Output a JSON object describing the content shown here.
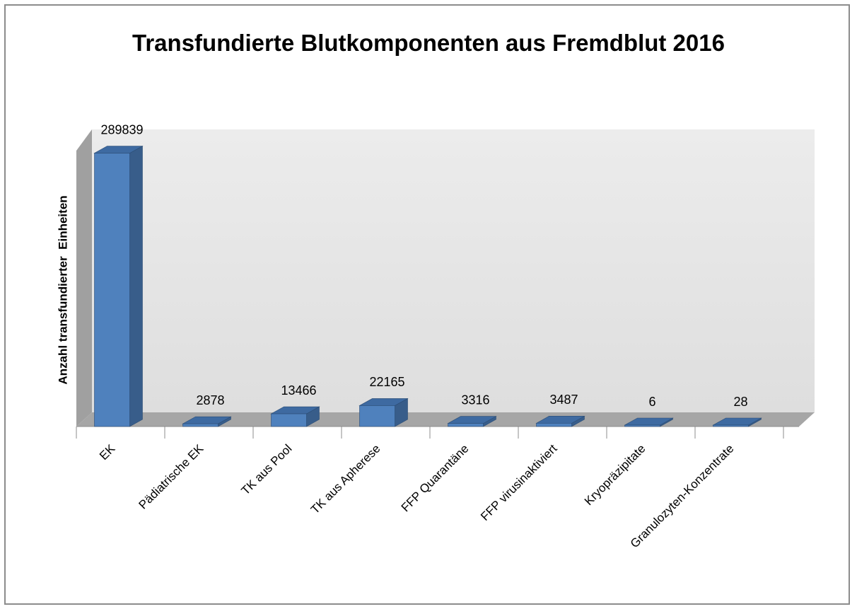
{
  "chart_data": {
    "type": "bar3d",
    "title": "Transfundierte Blutkomponenten aus Fremdblut 2016",
    "y_label": "Anzahl transfundierter  Einheiten",
    "categories": [
      "EK",
      "Pädiatrische EK",
      "TK aus Pool",
      "TK aus Apherese",
      "FFP Quarantäne",
      "FFP virusinaktiviert",
      "Kryopräzipitate",
      "Granulozyten-Konzentrate"
    ],
    "values": [
      289839,
      2878,
      13466,
      22165,
      3316,
      3487,
      6,
      28
    ],
    "color": "#4f81bd",
    "ylim": [
      0,
      300000
    ]
  }
}
